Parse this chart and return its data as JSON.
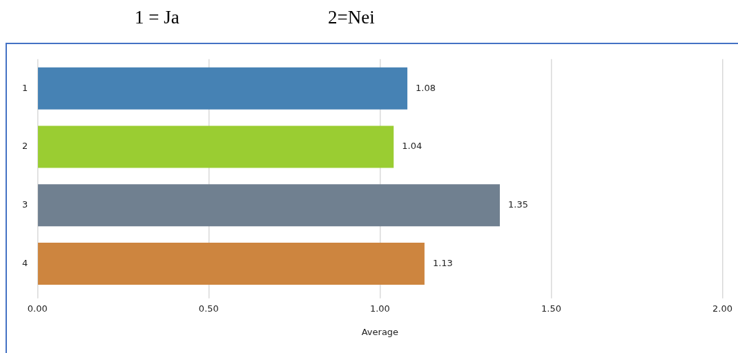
{
  "chart_data": {
    "type": "bar",
    "orientation": "horizontal",
    "xlabel": "Average",
    "annotations": [
      "1 = Ja",
      "2=Nei"
    ],
    "categories": [
      "1",
      "2",
      "3",
      "4"
    ],
    "values": [
      1.08,
      1.04,
      1.35,
      1.13
    ],
    "colors": [
      "#4682b4",
      "#9acd32",
      "#708090",
      "#cd853f"
    ],
    "xlim": [
      0,
      2
    ],
    "xticks": [
      {
        "value": 0,
        "label": "0.00"
      },
      {
        "value": 0.5,
        "label": "0.50"
      },
      {
        "value": 1,
        "label": "1.00"
      },
      {
        "value": 1.5,
        "label": "1.50"
      },
      {
        "value": 2,
        "label": "2.00"
      }
    ],
    "grid": "x",
    "data_labels": true,
    "legend": false
  }
}
